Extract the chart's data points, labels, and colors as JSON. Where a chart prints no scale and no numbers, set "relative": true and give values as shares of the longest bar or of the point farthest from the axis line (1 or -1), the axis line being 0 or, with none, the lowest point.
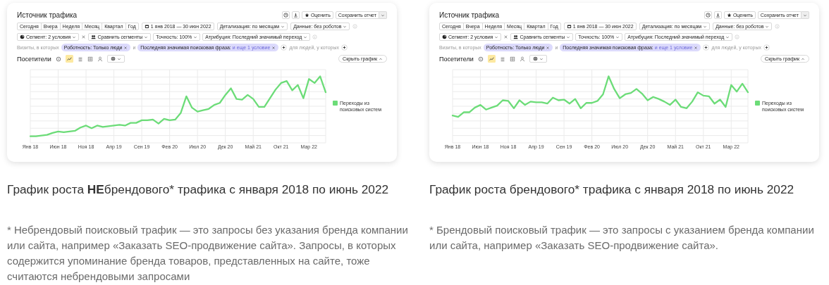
{
  "chart_data": [
    {
      "type": "line",
      "title": "Источник трафика",
      "relative": true,
      "grid": true,
      "legend": "right",
      "marker": "none",
      "categories": [
        "Янв 18",
        null,
        null,
        null,
        null,
        "Июн 18",
        null,
        null,
        null,
        null,
        "Ноя 18",
        null,
        null,
        null,
        null,
        "Апр 19",
        null,
        null,
        null,
        null,
        "Сен 19",
        null,
        null,
        null,
        null,
        "Фев 20",
        null,
        null,
        null,
        null,
        "Июл 20",
        null,
        null,
        null,
        null,
        "Дек 20",
        null,
        null,
        null,
        null,
        "Май 21",
        null,
        null,
        null,
        null,
        "Окт 21",
        null,
        null,
        null,
        null,
        "Мар 22",
        null,
        null,
        null
      ],
      "series": [
        {
          "name": "Переходы из поисковых систем",
          "color": "#6cdc78",
          "values": [
            0.1,
            0.1,
            0.11,
            0.12,
            0.15,
            0.17,
            0.16,
            0.17,
            0.18,
            0.23,
            0.26,
            0.22,
            0.26,
            0.24,
            0.25,
            0.26,
            0.27,
            0.26,
            0.3,
            0.3,
            0.34,
            0.34,
            0.35,
            0.29,
            0.36,
            0.34,
            0.35,
            0.45,
            0.7,
            0.53,
            0.47,
            0.49,
            0.51,
            0.57,
            0.6,
            0.72,
            0.82,
            0.66,
            0.65,
            0.72,
            0.66,
            0.54,
            0.54,
            0.67,
            0.8,
            0.9,
            0.93,
            0.79,
            0.87,
            0.67,
            0.96,
            0.9,
            1,
            0.76
          ]
        }
      ],
      "annotations": [
        "Сегодня",
        "Вчера",
        "Неделя",
        "Месяц",
        "Квартал",
        "Год",
        "1 янв 2018 — 30 июн 2022",
        "Детализация: по месяцам",
        "Данные: без роботов",
        "Оценить",
        "Сохранить отчет",
        "Сегмент: 2 условия",
        "Сравнить сегменты",
        "Точность: 100%",
        "Атрибуция: Последний значимый переход",
        "Визиты, в которых",
        "Роботность: Только люди",
        "и",
        "Последняя значимая поисковая фраза:",
        "и еще 1 условие",
        "для людей, у которых",
        "Посетители",
        "Скрыть график",
        "График роста НЕбрендового* трафика с января 2018 по июнь 2022",
        "* Небрендовый поисковый трафик — это запросы без указания бренда компании или сайта, например «Заказать SEO-продвижение сайта». Запросы, в которых содержится упоминание бренда товаров, представленных на сайте, тоже считаются небрендовыми запросами"
      ]
    },
    {
      "type": "line",
      "title": "Источник трафика",
      "relative": true,
      "grid": true,
      "legend": "right",
      "marker": "none",
      "categories": [
        "Янв 18",
        null,
        null,
        null,
        null,
        "Июн 18",
        null,
        null,
        null,
        null,
        "Ноя 18",
        null,
        null,
        null,
        null,
        "Апр 19",
        null,
        null,
        null,
        null,
        "Сен 19",
        null,
        null,
        null,
        null,
        "Фев 20",
        null,
        null,
        null,
        null,
        "Июл 20",
        null,
        null,
        null,
        null,
        "Дек 20",
        null,
        null,
        null,
        null,
        "Май 21",
        null,
        null,
        null,
        null,
        "Окт 21",
        null,
        null,
        null,
        null,
        "Мар 22",
        null,
        null,
        null
      ],
      "series": [
        {
          "name": "Переходы из поисковых систем",
          "color": "#6cdc78",
          "values": [
            0.41,
            0.39,
            0.46,
            0.46,
            0.53,
            0.57,
            0.5,
            0.53,
            0.56,
            0.64,
            0.63,
            0.52,
            0.64,
            0.57,
            0.62,
            0.61,
            0.61,
            0.59,
            0.68,
            0.64,
            0.65,
            0.59,
            0.66,
            0.52,
            0.6,
            0.6,
            0.63,
            0.73,
            1,
            0.81,
            0.67,
            0.73,
            0.75,
            0.81,
            0.74,
            0.64,
            0.69,
            0.66,
            0.62,
            0.57,
            0.65,
            0.54,
            0.52,
            0.62,
            0.76,
            0.71,
            0.7,
            0.59,
            0.65,
            0.54,
            0.87,
            0.77,
            0.89,
            0.76
          ]
        }
      ],
      "annotations": [
        "Сегодня",
        "Вчера",
        "Неделя",
        "Месяц",
        "Квартал",
        "Год",
        "1 янв 2018 — 30 июн 2022",
        "Детализация: по месяцам",
        "Данные: без роботов",
        "Оценить",
        "Сохранить отчет",
        "Сегмент: 2 условия",
        "Сравнить сегменты",
        "Точность: 100%",
        "Атрибуция: Последний значимый переход",
        "Визиты, в которых",
        "Роботность: Только люди",
        "и",
        "Последняя значимая поисковая фраза:",
        "и еще 1 условие",
        "для людей, у которых",
        "Посетители",
        "Скрыть график",
        "График роста брендового* трафика с января 2018 по июнь 2022",
        "* Брендовый поисковый трафик — это запросы с указанием бренда компании или сайта, например «Заказать SEO-продвижение сайта»."
      ]
    }
  ]
}
